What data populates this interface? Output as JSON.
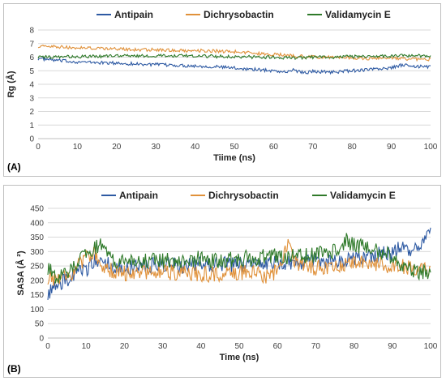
{
  "colors": {
    "Antipain": "#2e5aa3",
    "Dichrysobactin": "#e0913a",
    "Validamycin E": "#2f7a2a",
    "grid": "#d9d9d9"
  },
  "chart_data": [
    {
      "type": "line",
      "panel_label": "(A)",
      "xlabel": "Tiime (ns)",
      "ylabel": "Rg (Å)",
      "xlim": [
        0,
        100
      ],
      "ylim": [
        0,
        8
      ],
      "x_ticks": [
        0,
        10,
        20,
        30,
        40,
        50,
        60,
        70,
        80,
        90,
        100
      ],
      "y_ticks": [
        0,
        1,
        2,
        3,
        4,
        5,
        6,
        7,
        8
      ],
      "grid": "horizontal",
      "legend": "top-center",
      "series": [
        {
          "name": "Antipain",
          "color": "#2e5aa3",
          "x": [
            0,
            5,
            10,
            15,
            20,
            25,
            30,
            35,
            40,
            45,
            50,
            55,
            60,
            63,
            65,
            68,
            70,
            75,
            80,
            85,
            90,
            93,
            95,
            100
          ],
          "y": [
            5.9,
            5.75,
            5.65,
            5.6,
            5.55,
            5.5,
            5.45,
            5.4,
            5.35,
            5.3,
            5.2,
            5.1,
            5.0,
            4.9,
            5.05,
            4.85,
            4.95,
            4.9,
            5.0,
            5.1,
            5.2,
            5.45,
            5.3,
            5.3
          ]
        },
        {
          "name": "Dichrysobactin",
          "color": "#e0913a",
          "x": [
            0,
            5,
            10,
            15,
            20,
            25,
            30,
            35,
            40,
            45,
            50,
            55,
            60,
            65,
            70,
            75,
            80,
            85,
            90,
            95,
            100
          ],
          "y": [
            6.8,
            6.75,
            6.7,
            6.65,
            6.6,
            6.55,
            6.55,
            6.5,
            6.5,
            6.45,
            6.4,
            6.3,
            6.2,
            6.1,
            6.0,
            6.0,
            5.95,
            5.9,
            5.9,
            5.85,
            5.85
          ]
        },
        {
          "name": "Validamycin E",
          "color": "#2f7a2a",
          "x": [
            0,
            5,
            10,
            15,
            20,
            25,
            30,
            35,
            40,
            45,
            50,
            55,
            60,
            65,
            70,
            75,
            80,
            85,
            90,
            95,
            100
          ],
          "y": [
            6.0,
            6.0,
            6.05,
            6.05,
            6.1,
            6.1,
            6.1,
            6.1,
            6.1,
            6.05,
            6.05,
            6.0,
            6.0,
            5.95,
            6.0,
            6.0,
            6.05,
            6.05,
            6.1,
            6.1,
            6.1
          ]
        }
      ]
    },
    {
      "type": "line",
      "panel_label": "(B)",
      "xlabel": "Time (ns)",
      "ylabel": "SASA (Å ²)",
      "xlim": [
        0,
        100
      ],
      "ylim": [
        0,
        450
      ],
      "x_ticks": [
        0,
        10,
        20,
        30,
        40,
        50,
        60,
        70,
        80,
        90,
        100
      ],
      "y_ticks": [
        0,
        50,
        100,
        150,
        200,
        250,
        300,
        350,
        400,
        450
      ],
      "grid": "horizontal",
      "legend": "top-center",
      "series": [
        {
          "name": "Antipain",
          "color": "#2e5aa3",
          "x": [
            0,
            2,
            4,
            6,
            8,
            10,
            12,
            14,
            16,
            18,
            20,
            25,
            30,
            35,
            40,
            45,
            50,
            55,
            60,
            65,
            70,
            75,
            80,
            85,
            88,
            90,
            92,
            94,
            96,
            98,
            100
          ],
          "y": [
            160,
            175,
            195,
            210,
            225,
            240,
            265,
            270,
            255,
            250,
            245,
            250,
            255,
            250,
            255,
            260,
            255,
            260,
            265,
            260,
            265,
            270,
            275,
            280,
            300,
            290,
            320,
            300,
            330,
            320,
            370
          ]
        },
        {
          "name": "Dichrysobactin",
          "color": "#e0913a",
          "x": [
            0,
            2,
            4,
            6,
            8,
            10,
            12,
            14,
            16,
            18,
            20,
            25,
            30,
            35,
            40,
            45,
            50,
            55,
            58,
            60,
            63,
            65,
            70,
            75,
            80,
            85,
            90,
            95,
            100
          ],
          "y": [
            210,
            205,
            210,
            225,
            250,
            275,
            300,
            260,
            235,
            230,
            225,
            230,
            230,
            225,
            220,
            225,
            230,
            220,
            215,
            240,
            330,
            250,
            245,
            250,
            270,
            260,
            250,
            245,
            240
          ]
        },
        {
          "name": "Validamycin E",
          "color": "#2f7a2a",
          "x": [
            0,
            2,
            4,
            6,
            8,
            10,
            12,
            14,
            16,
            18,
            20,
            25,
            30,
            35,
            40,
            45,
            50,
            55,
            60,
            65,
            70,
            75,
            78,
            80,
            85,
            90,
            95,
            100
          ],
          "y": [
            240,
            215,
            220,
            230,
            260,
            290,
            315,
            330,
            280,
            265,
            260,
            265,
            270,
            270,
            275,
            270,
            275,
            280,
            285,
            280,
            290,
            300,
            340,
            320,
            310,
            280,
            235,
            225
          ]
        }
      ]
    }
  ]
}
